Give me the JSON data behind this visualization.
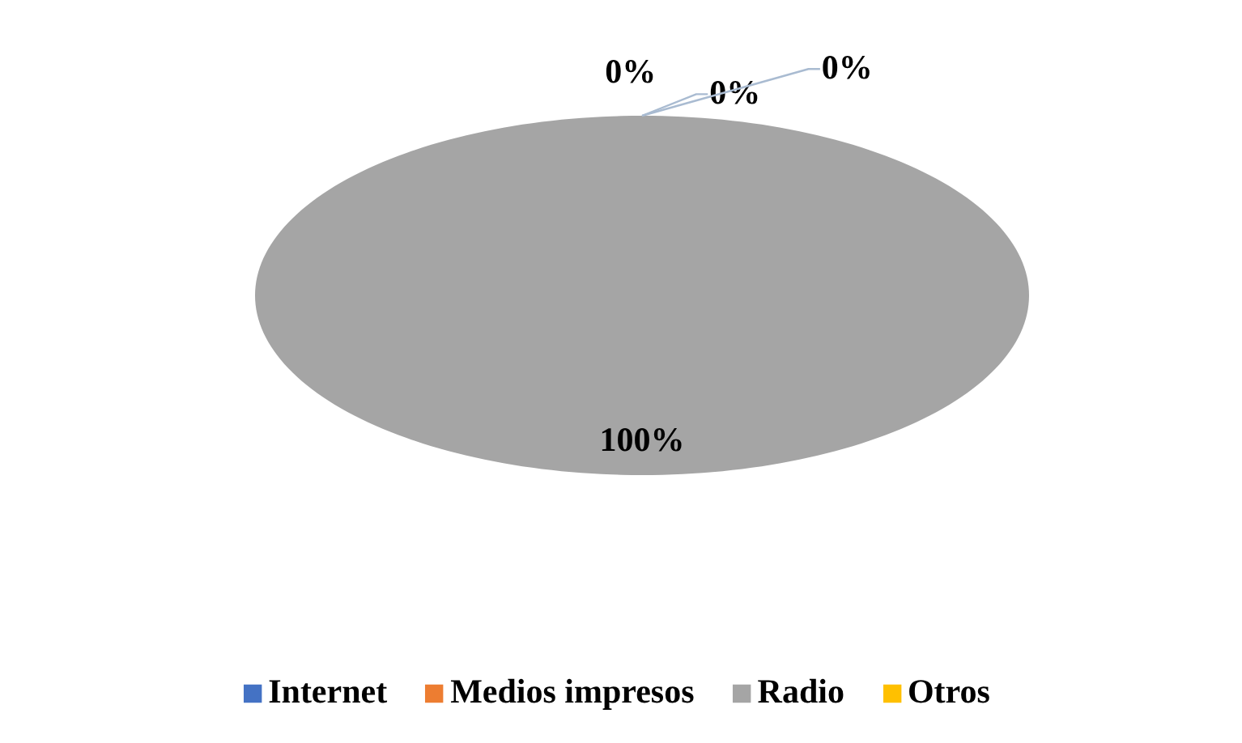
{
  "chart_data": {
    "type": "pie",
    "categories": [
      "Internet",
      "Medios impresos",
      "Radio",
      "Otros"
    ],
    "values": [
      0,
      0,
      100,
      0
    ],
    "colors": [
      "#4472c4",
      "#ed7d31",
      "#a5a5a5",
      "#ffc000"
    ],
    "value_labels": [
      "0%",
      "0%",
      "100%",
      "0%"
    ],
    "legend": "bottom"
  }
}
